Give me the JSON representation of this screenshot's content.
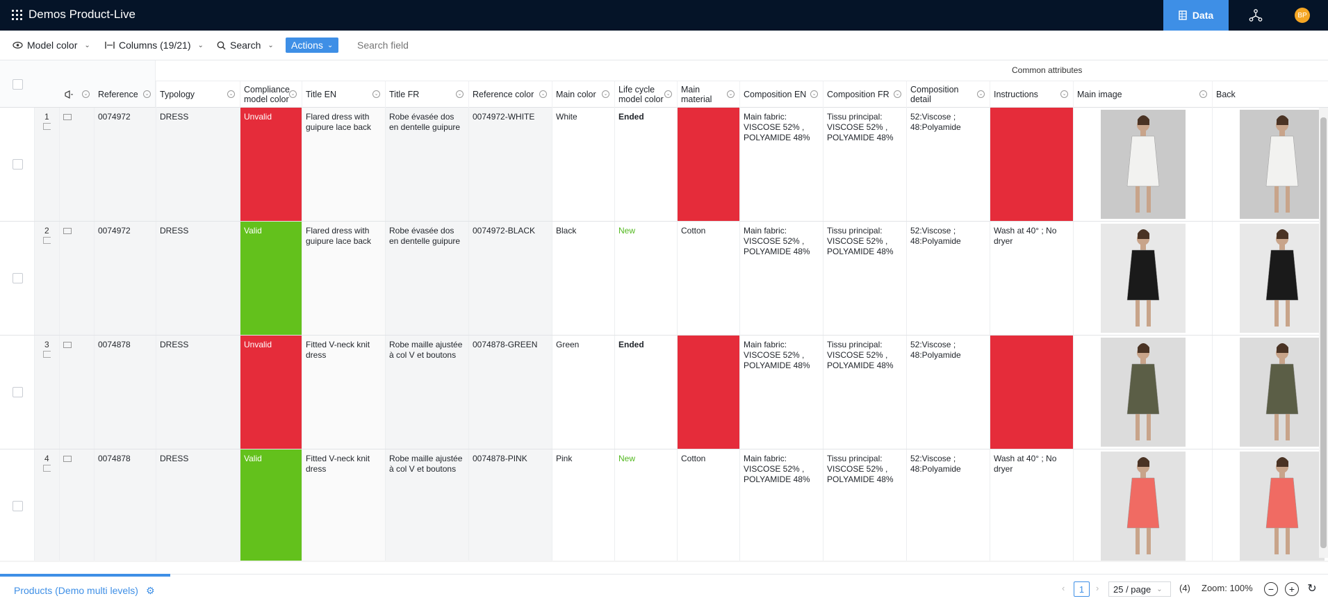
{
  "app": {
    "title": "Demos Product-Live",
    "data_tab": "Data",
    "avatar": "BP"
  },
  "toolbar": {
    "view": "Model color",
    "columns": "Columns (19/21)",
    "search": "Search",
    "actions": "Actions",
    "search_placeholder": "Search field"
  },
  "grid": {
    "group_header": "Common attributes",
    "columns": [
      "Reference",
      "Typology",
      "Compliance model color",
      "Title EN",
      "Title FR",
      "Reference color",
      "Main color",
      "Life cycle model color",
      "Main material",
      "Composition EN",
      "Composition FR",
      "Composition detail",
      "Instructions",
      "Main image",
      "Back"
    ],
    "rows": [
      {
        "num": "1",
        "reference": "0074972",
        "typology": "DRESS",
        "compliance": "Unvalid",
        "title_en": "Flared dress with guipure lace back",
        "title_fr": "Robe évasée dos en dentelle guipure",
        "ref_color": "0074972-WHITE",
        "main_color": "White",
        "lifecycle": "Ended",
        "material": "",
        "comp_en": "Main fabric: VISCOSE 52% , POLYAMIDE 48%",
        "comp_fr": "Tissu principal: VISCOSE 52% , POLYAMIDE 48%",
        "comp_detail": "52:Viscose ; 48:Polyamide",
        "instructions": ""
      },
      {
        "num": "2",
        "reference": "0074972",
        "typology": "DRESS",
        "compliance": "Valid",
        "title_en": "Flared dress with guipure lace back",
        "title_fr": "Robe évasée dos en dentelle guipure",
        "ref_color": "0074972-BLACK",
        "main_color": "Black",
        "lifecycle": "New",
        "material": "Cotton",
        "comp_en": "Main fabric: VISCOSE 52% , POLYAMIDE 48%",
        "comp_fr": "Tissu principal: VISCOSE 52% , POLYAMIDE 48%",
        "comp_detail": "52:Viscose ; 48:Polyamide",
        "instructions": "Wash at 40° ; No dryer"
      },
      {
        "num": "3",
        "reference": "0074878",
        "typology": "DRESS",
        "compliance": "Unvalid",
        "title_en": "Fitted V-neck knit dress",
        "title_fr": "Robe maille ajustée à col V et boutons",
        "ref_color": "0074878-GREEN",
        "main_color": "Green",
        "lifecycle": "Ended",
        "material": "",
        "comp_en": "Main fabric: VISCOSE 52% , POLYAMIDE 48%",
        "comp_fr": "Tissu principal: VISCOSE 52% , POLYAMIDE 48%",
        "comp_detail": "52:Viscose ; 48:Polyamide",
        "instructions": ""
      },
      {
        "num": "4",
        "reference": "0074878",
        "typology": "DRESS",
        "compliance": "Valid",
        "title_en": "Fitted V-neck knit dress",
        "title_fr": "Robe maille ajustée à col V et boutons",
        "ref_color": "0074878-PINK",
        "main_color": "Pink",
        "lifecycle": "New",
        "material": "Cotton",
        "comp_en": "Main fabric: VISCOSE 52% , POLYAMIDE 48%",
        "comp_fr": "Tissu principal: VISCOSE 52% , POLYAMIDE 48%",
        "comp_detail": "52:Viscose ; 48:Polyamide",
        "instructions": "Wash at 40° ; No dryer"
      }
    ],
    "dress_colors": [
      "#f2f2f0",
      "#1a1a1a",
      "#5b5e46",
      "#f06b63"
    ],
    "photo_bg": [
      "#c9c9c9",
      "#e8e8e8",
      "#dcdcdc",
      "#e2e2e2"
    ]
  },
  "colors": {
    "accent": "#3e8fe6",
    "topbar": "#051428",
    "invalid": "#e52c3a",
    "valid": "#63c11c"
  },
  "footer": {
    "catalog": "Products (Demo multi levels)",
    "page": "1",
    "per_page": "25 / page",
    "count": "(4)",
    "zoom": "Zoom: 100%"
  }
}
